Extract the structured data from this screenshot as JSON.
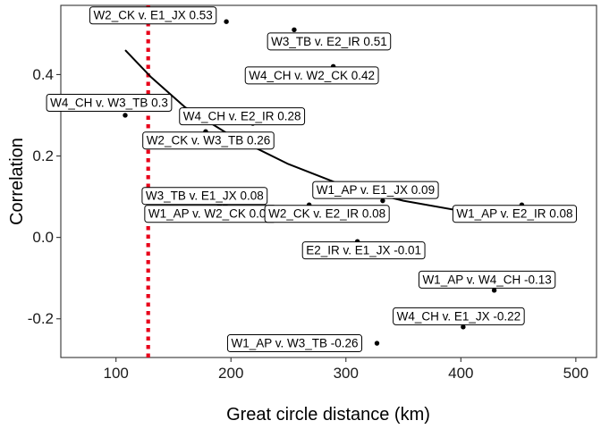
{
  "chart_data": {
    "type": "scatter",
    "xlabel": "Great circle distance (km)",
    "ylabel": "Correlation",
    "xlim": [
      52,
      518
    ],
    "ylim": [
      -0.295,
      0.57
    ],
    "x_ticks": [
      100,
      200,
      300,
      400,
      500
    ],
    "y_ticks": [
      -0.2,
      0.0,
      0.2,
      0.4
    ],
    "y_tick_labels": [
      "-0.2",
      "0.0",
      "0.2",
      "0.4"
    ],
    "grid": false,
    "legend": "none",
    "points": [
      {
        "label": "W2_CK v. E1_JX 0.53",
        "x": 196,
        "y": 0.53
      },
      {
        "label": "W3_TB v. E2_IR 0.51",
        "x": 255,
        "y": 0.51
      },
      {
        "label": "W4_CH v. W2_CK 0.42",
        "x": 289,
        "y": 0.42
      },
      {
        "label": "W4_CH v. W3_TB 0.3",
        "x": 108,
        "y": 0.3
      },
      {
        "label": "W4_CH v. E2_IR 0.28",
        "x": 219,
        "y": 0.28
      },
      {
        "label": "W2_CK v. W3_TB 0.26",
        "x": 178,
        "y": 0.26
      },
      {
        "label": "W3_TB v. E1_JX 0.08",
        "x": 195,
        "y": 0.08
      },
      {
        "label": "W1_AP v. W2_CK 0.08",
        "x": 190,
        "y": 0.08
      },
      {
        "label": "W2_CK v. E2_IR 0.08",
        "x": 268,
        "y": 0.08
      },
      {
        "label": "W1_AP v. E1_JX 0.09",
        "x": 332,
        "y": 0.09
      },
      {
        "label": "W1_AP v. E2_IR 0.08",
        "x": 453,
        "y": 0.08
      },
      {
        "label": "E2_IR v. E1_JX -0.01",
        "x": 310,
        "y": -0.01
      },
      {
        "label": "W1_AP v. W4_CH -0.13",
        "x": 429,
        "y": -0.13
      },
      {
        "label": "W4_CH v. E1_JX -0.22",
        "x": 402,
        "y": -0.22
      },
      {
        "label": "W1_AP v. W3_TB -0.26",
        "x": 327,
        "y": -0.26
      }
    ],
    "trend_line": {
      "x": [
        108,
        130,
        160,
        200,
        250,
        300,
        350,
        400,
        430
      ],
      "y": [
        0.46,
        0.395,
        0.32,
        0.25,
        0.18,
        0.125,
        0.09,
        0.065,
        0.055
      ]
    },
    "reference_line": {
      "x": 128,
      "color": "#e8001a",
      "style": "dotted"
    },
    "colors": {
      "points": "#000000",
      "trend": "#000000",
      "reference": "#e8001a",
      "background": "#ffffff"
    }
  }
}
